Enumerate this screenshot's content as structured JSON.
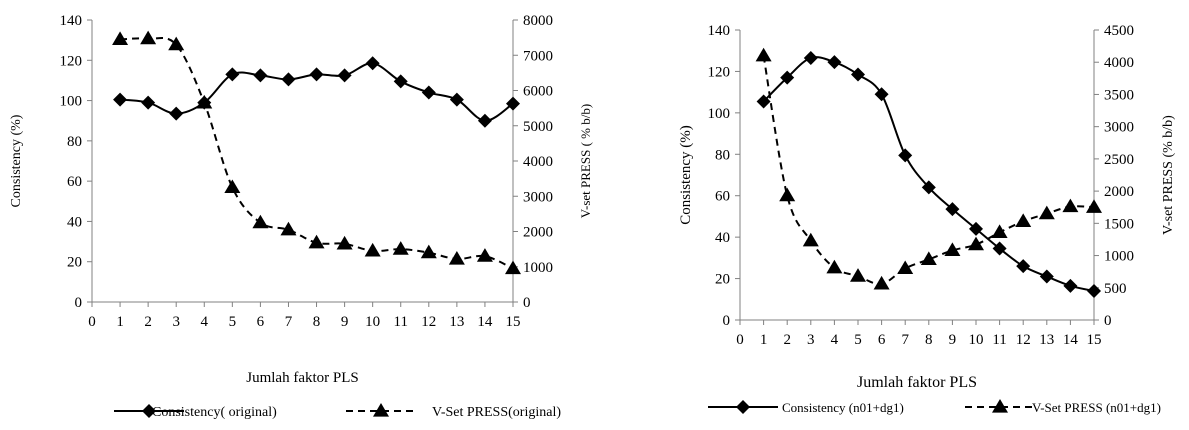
{
  "chart_data": [
    {
      "type": "line",
      "title": "",
      "xlabel": "Jumlah faktor PLS",
      "ylabel": "Consistency (%)",
      "y2label": "V-set PRESS ( % b/b)",
      "xlim": [
        0,
        15
      ],
      "ylim": [
        0,
        140
      ],
      "y2lim": [
        0,
        8000
      ],
      "xticks": [
        "0",
        "1",
        "2",
        "3",
        "4",
        "5",
        "6",
        "7",
        "8",
        "9",
        "10",
        "11",
        "12",
        "13",
        "14",
        "15"
      ],
      "yticks": [
        "0",
        "20",
        "40",
        "60",
        "80",
        "100",
        "120",
        "140"
      ],
      "y2ticks": [
        "0",
        "1000",
        "2000",
        "3000",
        "4000",
        "5000",
        "6000",
        "7000",
        "8000"
      ],
      "grid": false,
      "legend": "bottom",
      "x": [
        1,
        2,
        3,
        4,
        5,
        6,
        7,
        8,
        9,
        10,
        11,
        12,
        13,
        14,
        15
      ],
      "series": [
        {
          "name": "Consistency( original)",
          "axis": "left",
          "marker": "diamond",
          "dash": "solid",
          "values": [
            100.5,
            99,
            93.5,
            99,
            113,
            112.5,
            110.5,
            113,
            112.5,
            118.5,
            109.5,
            104,
            100.5,
            90,
            98.5
          ]
        },
        {
          "name": "V-Set PRESS(original)",
          "axis": "right",
          "marker": "triangle",
          "dash": "dashed",
          "values": [
            7450,
            7470,
            7300,
            5650,
            3250,
            2250,
            2050,
            1680,
            1650,
            1450,
            1500,
            1400,
            1220,
            1300,
            950
          ]
        }
      ]
    },
    {
      "type": "line",
      "title": "",
      "xlabel": "Jumlah faktor PLS",
      "ylabel": "Consistency (%)",
      "y2label": "V-set PRESS (% b/b)",
      "xlim": [
        0,
        15
      ],
      "ylim": [
        0,
        140
      ],
      "y2lim": [
        0,
        4500
      ],
      "xticks": [
        "0",
        "1",
        "2",
        "3",
        "4",
        "5",
        "6",
        "7",
        "8",
        "9",
        "10",
        "11",
        "12",
        "13",
        "14",
        "15"
      ],
      "yticks": [
        "0",
        "20",
        "40",
        "60",
        "80",
        "100",
        "120",
        "140"
      ],
      "y2ticks": [
        "0",
        "500",
        "1000",
        "1500",
        "2000",
        "2500",
        "3000",
        "3500",
        "4000",
        "4500"
      ],
      "grid": false,
      "legend": "bottom",
      "x": [
        1,
        2,
        3,
        4,
        5,
        6,
        7,
        8,
        9,
        10,
        11,
        12,
        13,
        14,
        15
      ],
      "series": [
        {
          "name": "Consistency (n01+dg1)",
          "axis": "left",
          "marker": "diamond",
          "dash": "solid",
          "values": [
            105.5,
            117,
            126.5,
            124.5,
            118.5,
            109,
            79.5,
            64,
            53.5,
            44,
            34.5,
            26,
            21,
            16.5,
            14
          ]
        },
        {
          "name": "V-Set PRESS (n01+dg1)",
          "axis": "right",
          "marker": "triangle",
          "dash": "dashed",
          "values": [
            4100,
            1930,
            1230,
            810,
            680,
            560,
            800,
            940,
            1080,
            1170,
            1360,
            1530,
            1650,
            1760,
            1750
          ]
        }
      ]
    }
  ]
}
